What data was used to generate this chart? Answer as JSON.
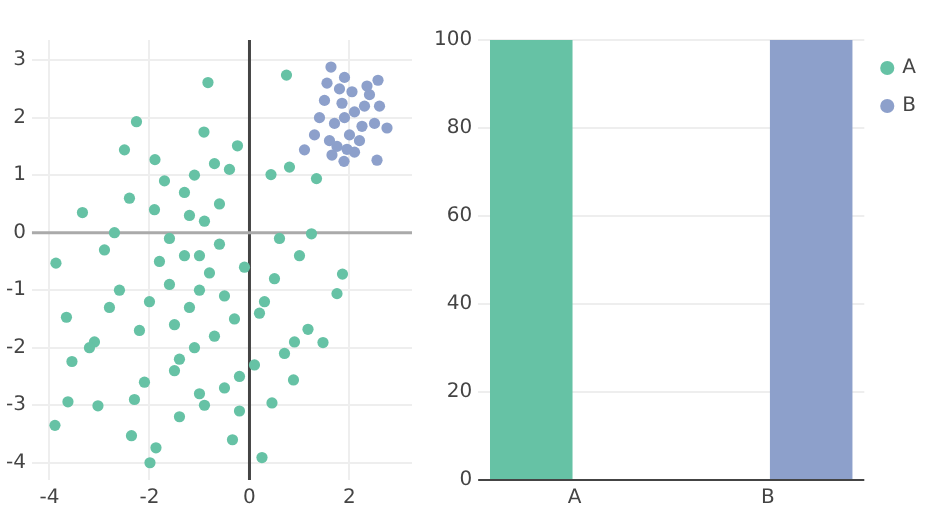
{
  "chart_data": [
    {
      "type": "scatter",
      "xlim": [
        -4.35,
        3.25
      ],
      "ylim": [
        -4.3,
        3.35
      ],
      "xticks": [
        -4,
        -2,
        0,
        2
      ],
      "yticks": [
        -4,
        -3,
        -2,
        -1,
        0,
        1,
        2,
        3
      ],
      "grid": true,
      "marker": "circle",
      "ref_lines": [
        {
          "axis": "x",
          "value": 0,
          "color": "#444444"
        },
        {
          "axis": "y",
          "value": 0,
          "color": "#aaaaaa"
        }
      ],
      "series": [
        {
          "color": "#66c2a5",
          "x": [
            -0.83,
            0.74,
            -2.26,
            -3.89,
            -1.99,
            0.25,
            1.86,
            -3.63,
            -3.03,
            -3.87,
            -2.5,
            -0.24,
            -0.91,
            1.75,
            1.47,
            1.34,
            0.88,
            -3.55,
            -2.36,
            -0.34,
            -1.87,
            0.45,
            1.17,
            -3.66,
            -3.34,
            0.8,
            -1.89,
            0.43,
            1.24,
            -1.0,
            -1.2,
            -0.8,
            -1.5,
            -0.5,
            -1.3,
            -0.7,
            -1.6,
            -0.3,
            -2.0,
            -0.1,
            -1.1,
            -0.9,
            -1.4,
            -0.6,
            -1.8,
            -2.2,
            -2.6,
            -2.9,
            -3.1,
            -2.4,
            0.2,
            0.5,
            0.7,
            1.0,
            -0.2,
            -1.7,
            -1.3,
            -0.4,
            -2.1,
            -1.0,
            -0.6,
            -1.5,
            -2.7,
            0.3,
            0.9,
            -0.9,
            -1.2,
            -1.9,
            -2.3,
            -0.5,
            -1.4,
            -0.7,
            0.1,
            -1.1,
            -2.8,
            -3.2,
            -1.6,
            0.6,
            -0.2,
            -1.0
          ],
          "values": [
            2.61,
            2.74,
            1.93,
            -3.35,
            -4.0,
            -3.91,
            -0.72,
            -2.94,
            -3.01,
            -0.53,
            1.44,
            1.51,
            1.75,
            -1.06,
            -1.91,
            0.94,
            -2.56,
            -2.24,
            -3.53,
            -3.6,
            -3.74,
            -2.96,
            -1.68,
            -1.47,
            0.35,
            1.14,
            1.27,
            1.01,
            -0.02,
            -1.0,
            -1.3,
            -0.7,
            -1.6,
            -1.1,
            -0.4,
            -1.8,
            -0.9,
            -1.5,
            -1.2,
            -0.6,
            -2.0,
            0.2,
            -2.2,
            0.5,
            -0.5,
            -1.7,
            -1.0,
            -0.3,
            -1.9,
            0.6,
            -1.4,
            -0.8,
            -2.1,
            -0.4,
            -2.5,
            0.9,
            0.7,
            1.1,
            -2.6,
            -2.8,
            -0.2,
            -2.4,
            0.0,
            -1.2,
            -1.9,
            -3.0,
            0.3,
            0.4,
            -2.9,
            -2.7,
            -3.2,
            1.2,
            -2.3,
            1.0,
            -1.3,
            -2.0,
            -0.1,
            -0.1,
            -3.1,
            -0.4
          ]
        },
        {
          "color": "#8da0cb",
          "x": [
            1.63,
            2.75,
            1.1,
            1.89,
            2.55,
            2.57,
            1.9,
            2.1,
            1.7,
            2.3,
            1.5,
            2.0,
            1.8,
            2.2,
            1.6,
            2.4,
            1.4,
            2.5,
            1.9,
            2.1,
            1.75,
            2.05,
            1.3,
            2.6,
            1.95,
            1.85,
            2.25,
            1.55,
            2.35,
            1.65
          ],
          "values": [
            2.88,
            1.82,
            1.44,
            1.24,
            1.26,
            2.65,
            2.0,
            2.1,
            1.9,
            2.2,
            2.3,
            1.7,
            2.5,
            1.6,
            1.6,
            2.4,
            2.0,
            1.9,
            2.7,
            1.4,
            1.5,
            2.45,
            1.7,
            2.2,
            1.45,
            2.25,
            1.85,
            2.6,
            2.55,
            1.35
          ]
        }
      ]
    },
    {
      "type": "bar",
      "categories": [
        "A",
        "B"
      ],
      "ylim": [
        0,
        100
      ],
      "yticks": [
        0,
        20,
        40,
        60,
        80,
        100
      ],
      "grid": "y",
      "legend": "top right",
      "series": [
        {
          "name": "A",
          "color": "#66c2a5",
          "values": [
            100,
            null
          ]
        },
        {
          "name": "B",
          "color": "#8da0cb",
          "values": [
            null,
            100
          ]
        }
      ]
    }
  ]
}
